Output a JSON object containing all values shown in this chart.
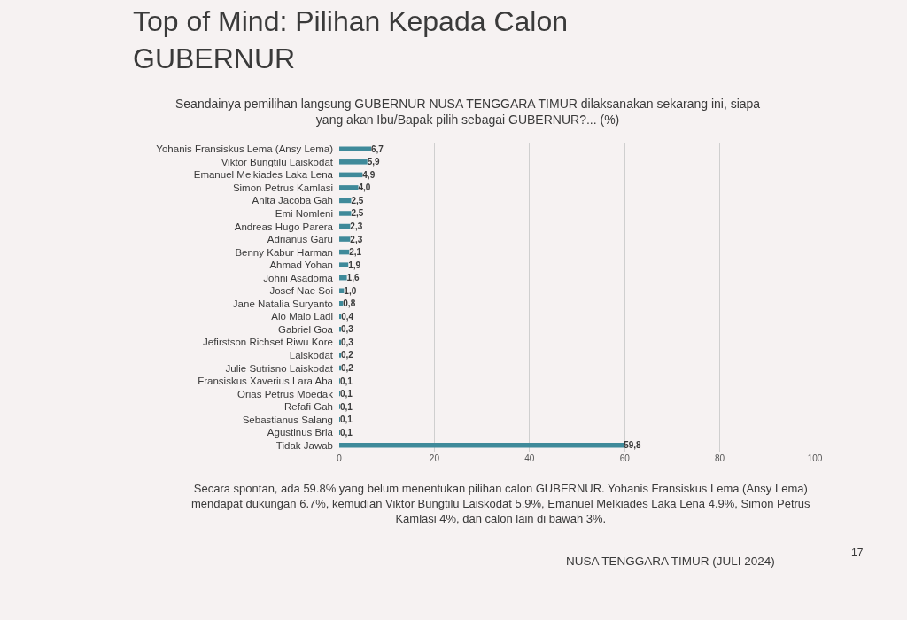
{
  "chart_data": {
    "type": "bar",
    "orientation": "horizontal",
    "title": "Top of Mind: Pilihan Kepada Calon\nGUBERNUR",
    "subtitle": "Seandainya pemilihan langsung GUBERNUR NUSA TENGGARA TIMUR dilaksanakan sekarang ini, siapa\nyang akan Ibu/Bapak pilih sebagai GUBERNUR?... (%)",
    "categories": [
      "Yohanis Fransiskus Lema (Ansy Lema)",
      "Viktor Bungtilu Laiskodat",
      "Emanuel Melkiades Laka Lena",
      "Simon Petrus Kamlasi",
      "Anita Jacoba Gah",
      "Emi Nomleni",
      "Andreas Hugo Parera",
      "Adrianus Garu",
      "Benny Kabur Harman",
      "Ahmad Yohan",
      "Johni Asadoma",
      "Josef Nae Soi",
      "Jane Natalia Suryanto",
      "Alo Malo Ladi",
      "Gabriel Goa",
      "Jefirstson Richset Riwu Kore",
      "Laiskodat",
      "Julie Sutrisno Laiskodat",
      "Fransiskus Xaverius Lara Aba",
      "Orias Petrus Moedak",
      "Refafi Gah",
      "Sebastianus Salang",
      "Agustinus Bria",
      "Tidak Jawab"
    ],
    "values": [
      6.7,
      5.9,
      4.9,
      4.0,
      2.5,
      2.5,
      2.3,
      2.3,
      2.1,
      1.9,
      1.6,
      1.0,
      0.8,
      0.4,
      0.3,
      0.3,
      0.2,
      0.2,
      0.1,
      0.1,
      0.1,
      0.1,
      0.1,
      59.8
    ],
    "value_labels": [
      "6,7",
      "5,9",
      "4,9",
      "4,0",
      "2,5",
      "2,5",
      "2,3",
      "2,3",
      "2,1",
      "1,9",
      "1,6",
      "1,0",
      "0,8",
      "0,4",
      "0,3",
      "0,3",
      "0,2",
      "0,2",
      "0,1",
      "0,1",
      "0,1",
      "0,1",
      "0,1",
      "59,8"
    ],
    "color": "#3f8a9a",
    "xlim": [
      0,
      100
    ],
    "xticks": [
      0,
      20,
      40,
      60,
      80,
      100
    ],
    "grid": "x",
    "annotations": [
      "Secara spontan, ada 59.8% yang belum menentukan pilihan calon GUBERNUR. Yohanis Fransiskus Lema (Ansy Lema)\nmendapat dukungan 6.7%, kemudian Viktor Bungtilu Laiskodat 5.9%, Emanuel Melkiades Laka Lena 4.9%, Simon Petrus\nKamlasi 4%, dan calon lain di bawah 3%.",
      "NUSA TENGGARA TIMUR (JULI 2024)",
      "17"
    ]
  }
}
